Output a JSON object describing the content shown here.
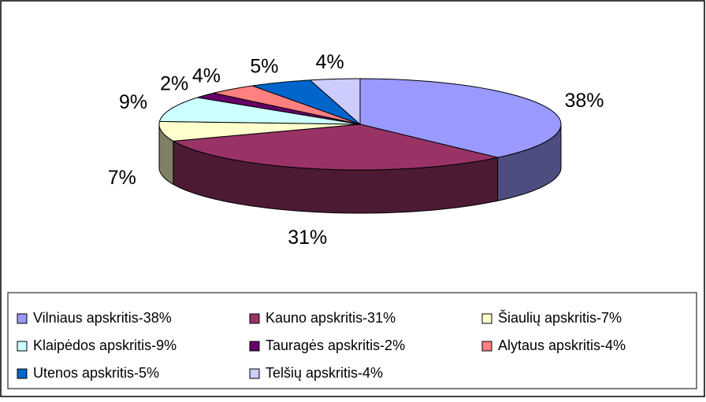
{
  "chart_data": {
    "type": "pie3d",
    "categories": [
      "Vilniaus apskritis-38%",
      "Kauno apskritis-31%",
      "Šiaulių apskritis-7%",
      "Klaipėdos apskritis-9%",
      "Tauragės apskritis-2%",
      "Alytaus apskritis-4%",
      "Utenos apskritis-5%",
      "Telšių apskritis-4%"
    ],
    "values": [
      38,
      31,
      7,
      9,
      2,
      4,
      5,
      4
    ],
    "value_labels": [
      "38%",
      "31%",
      "7%",
      "9%",
      "2%",
      "4%",
      "5%",
      "4%"
    ],
    "colors": [
      "#9999ff",
      "#993366",
      "#ffffcc",
      "#ccffff",
      "#660066",
      "#ff8080",
      "#0066cc",
      "#ccccff"
    ],
    "legend": "bottom"
  }
}
